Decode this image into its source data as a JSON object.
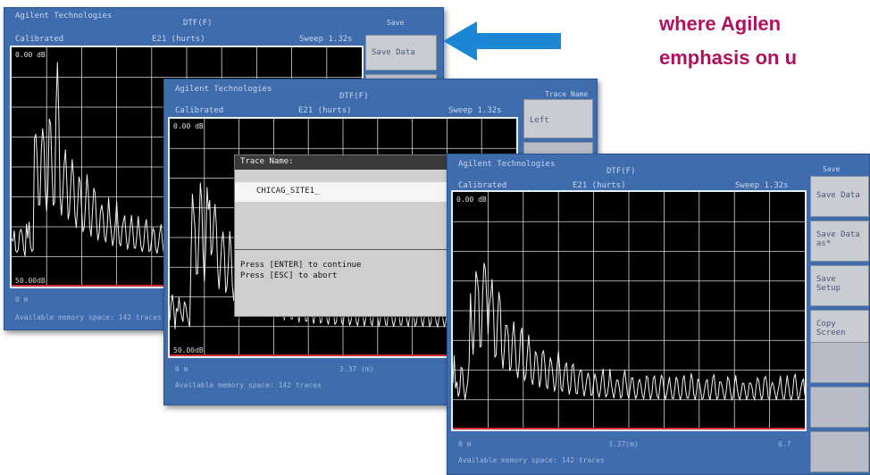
{
  "screens": [
    {
      "id": "back",
      "header": {
        "brand": "Agilent Technologies",
        "center_top": "DTF(F)",
        "status": "Calibrated",
        "center_sub": "E21 (hurts)",
        "right": "Sweep 1.32s"
      },
      "ref_level": "0.00 dB",
      "bottom_ref": "50.00dB",
      "foot": {
        "left": "0 m",
        "center": "",
        "right": "",
        "memory": "Available memory space: 142 traces"
      },
      "softkey_title": "Save",
      "softkeys": [
        "Save Data"
      ]
    },
    {
      "id": "middle",
      "header": {
        "brand": "Agilent Technologies",
        "center_top": "DTF(F)",
        "status": "Calibrated",
        "center_sub": "E21 (hurts)",
        "right": "Sweep 1.32s"
      },
      "ref_level": "0.00 dB",
      "bottom_ref": "50.00dB",
      "foot": {
        "left": "0 m",
        "center": "3.37 (m)",
        "right": "",
        "memory": "Available memory space: 142 traces"
      },
      "softkey_title": "Trace Name",
      "softkeys": [
        "Left",
        ""
      ],
      "dialog": {
        "title": "Trace Name:",
        "value": "CHICAG_SITE1_",
        "messages": [
          "Press [ENTER] to continue",
          "Press [ESC] to abort"
        ]
      }
    },
    {
      "id": "front",
      "header": {
        "brand": "Agilent Technologies",
        "center_top": "DTF(F)",
        "status": "Calibrated",
        "center_sub": "E21 (hurts)",
        "right": "Sweep 1.32s"
      },
      "ref_level": "0.00 dB",
      "bottom_ref": "50.00dB",
      "foot": {
        "left": "0 m",
        "center": "3.37(m)",
        "right": "6.7",
        "memory": "Available memory space: 142 traces"
      },
      "softkey_title": "Save",
      "softkeys": [
        "Save Data",
        "Save Data\nas*",
        "Save\nSetup",
        "Copy\nScreen",
        "",
        "",
        ""
      ]
    }
  ],
  "arrow": {
    "color": "#1b86d3",
    "direction": "left"
  },
  "tagline": {
    "line1": "where Agilen",
    "line2": "emphasis on u",
    "color": "#b0115f"
  }
}
